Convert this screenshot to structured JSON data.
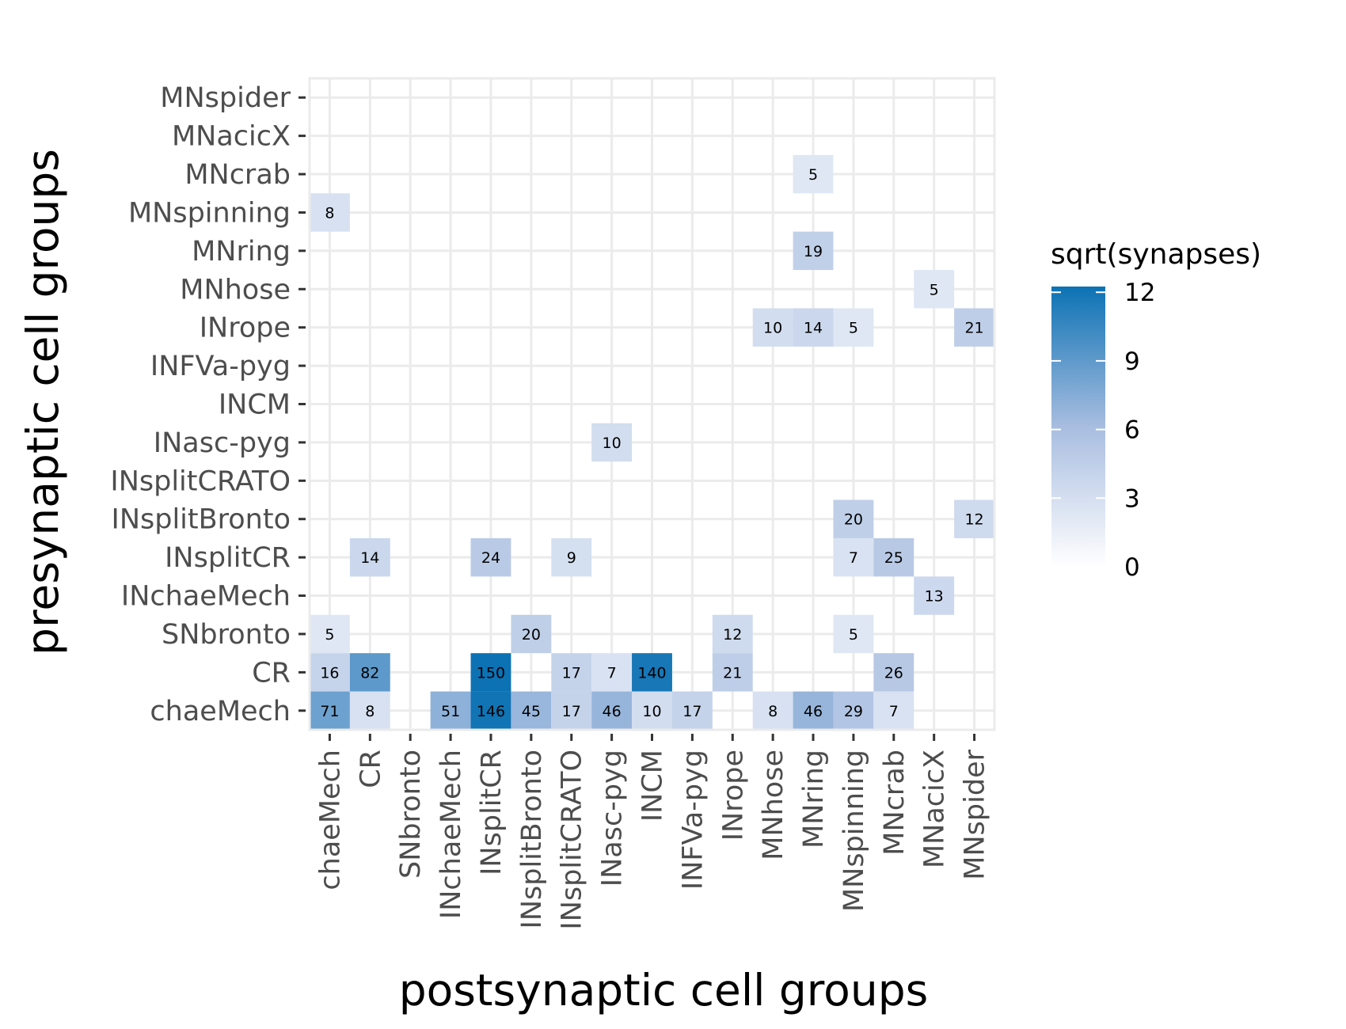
{
  "chart_data": {
    "type": "heatmap",
    "title": "",
    "xlabel": "postsynaptic cell groups",
    "ylabel": "presynaptic cell groups",
    "x_categories": [
      "chaeMech",
      "CR",
      "SNbronto",
      "INchaeMech",
      "INsplitCR",
      "INsplitBronto",
      "INsplitCRATO",
      "INasc-pyg",
      "INCM",
      "INFVa-pyg",
      "INrope",
      "MNhose",
      "MNring",
      "MNspinning",
      "MNcrab",
      "MNacicX",
      "MNspider"
    ],
    "y_categories": [
      "chaeMech",
      "CR",
      "SNbronto",
      "INchaeMech",
      "INsplitCR",
      "INsplitBronto",
      "INsplitCRATO",
      "INasc-pyg",
      "INCM",
      "INFVa-pyg",
      "INrope",
      "MNhose",
      "MNring",
      "MNspinning",
      "MNcrab",
      "MNacicX",
      "MNspider"
    ],
    "cells": [
      {
        "pre": "MNcrab",
        "post": "MNring",
        "synapses": 5
      },
      {
        "pre": "MNspinning",
        "post": "chaeMech",
        "synapses": 8
      },
      {
        "pre": "MNring",
        "post": "MNring",
        "synapses": 19
      },
      {
        "pre": "MNhose",
        "post": "MNacicX",
        "synapses": 5
      },
      {
        "pre": "INrope",
        "post": "MNhose",
        "synapses": 10
      },
      {
        "pre": "INrope",
        "post": "MNring",
        "synapses": 14
      },
      {
        "pre": "INrope",
        "post": "MNspinning",
        "synapses": 5
      },
      {
        "pre": "INrope",
        "post": "MNspider",
        "synapses": 21
      },
      {
        "pre": "INasc-pyg",
        "post": "INasc-pyg",
        "synapses": 10
      },
      {
        "pre": "INsplitBronto",
        "post": "MNspinning",
        "synapses": 20
      },
      {
        "pre": "INsplitBronto",
        "post": "MNspider",
        "synapses": 12
      },
      {
        "pre": "INsplitCR",
        "post": "CR",
        "synapses": 14
      },
      {
        "pre": "INsplitCR",
        "post": "INsplitCR",
        "synapses": 24
      },
      {
        "pre": "INsplitCR",
        "post": "INsplitCRATO",
        "synapses": 9
      },
      {
        "pre": "INsplitCR",
        "post": "MNspinning",
        "synapses": 7
      },
      {
        "pre": "INsplitCR",
        "post": "MNcrab",
        "synapses": 25
      },
      {
        "pre": "INchaeMech",
        "post": "MNacicX",
        "synapses": 13
      },
      {
        "pre": "SNbronto",
        "post": "chaeMech",
        "synapses": 5
      },
      {
        "pre": "SNbronto",
        "post": "INsplitBronto",
        "synapses": 20
      },
      {
        "pre": "SNbronto",
        "post": "INrope",
        "synapses": 12
      },
      {
        "pre": "SNbronto",
        "post": "MNspinning",
        "synapses": 5
      },
      {
        "pre": "CR",
        "post": "chaeMech",
        "synapses": 16
      },
      {
        "pre": "CR",
        "post": "CR",
        "synapses": 82
      },
      {
        "pre": "CR",
        "post": "INsplitCR",
        "synapses": 150
      },
      {
        "pre": "CR",
        "post": "INsplitCRATO",
        "synapses": 17
      },
      {
        "pre": "CR",
        "post": "INasc-pyg",
        "synapses": 7
      },
      {
        "pre": "CR",
        "post": "INCM",
        "synapses": 140
      },
      {
        "pre": "CR",
        "post": "INrope",
        "synapses": 21
      },
      {
        "pre": "CR",
        "post": "MNcrab",
        "synapses": 26
      },
      {
        "pre": "chaeMech",
        "post": "chaeMech",
        "synapses": 71
      },
      {
        "pre": "chaeMech",
        "post": "CR",
        "synapses": 8
      },
      {
        "pre": "chaeMech",
        "post": "INchaeMech",
        "synapses": 51
      },
      {
        "pre": "chaeMech",
        "post": "INsplitCR",
        "synapses": 146
      },
      {
        "pre": "chaeMech",
        "post": "INsplitBronto",
        "synapses": 45
      },
      {
        "pre": "chaeMech",
        "post": "INsplitCRATO",
        "synapses": 17
      },
      {
        "pre": "chaeMech",
        "post": "INasc-pyg",
        "synapses": 46
      },
      {
        "pre": "chaeMech",
        "post": "INCM",
        "synapses": 10
      },
      {
        "pre": "chaeMech",
        "post": "INFVa-pyg",
        "synapses": 17
      },
      {
        "pre": "chaeMech",
        "post": "MNhose",
        "synapses": 8
      },
      {
        "pre": "chaeMech",
        "post": "MNring",
        "synapses": 46
      },
      {
        "pre": "chaeMech",
        "post": "MNspinning",
        "synapses": 29
      },
      {
        "pre": "chaeMech",
        "post": "MNcrab",
        "synapses": 7
      }
    ],
    "color_scale": {
      "title": "sqrt(synapses)",
      "transform": "sqrt",
      "min": 0,
      "max": 12.25,
      "ticks": [
        0,
        3,
        6,
        9,
        12
      ],
      "low_color": "#ffffff",
      "mid_color": "#a8bde0",
      "high_color": "#0c72b4"
    },
    "grid": true,
    "legend": "right"
  }
}
